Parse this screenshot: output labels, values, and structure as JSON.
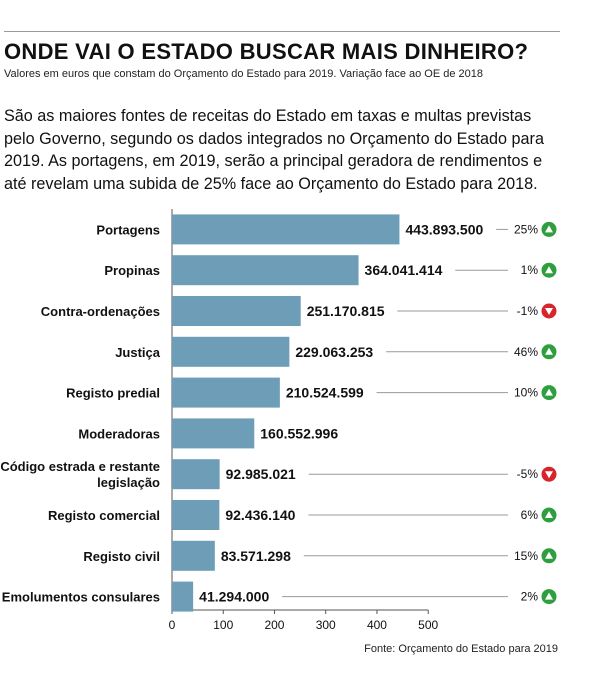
{
  "header": {
    "title": "ONDE VAI O ESTADO BUSCAR MAIS DINHEIRO?",
    "subtitle": "Valores em euros que constam do Orçamento do Estado para 2019. Variação face ao OE de 2018"
  },
  "intro": "São as maiores fontes de receitas do Estado em taxas e multas previstas pelo Governo, segundo os dados integrados no Orçamento do  Estado para 2019. As portagens, em 2019, serão a principal geradora de rendimentos e até revelam uma subida de 25% face ao Orçamento do Estado para 2018.",
  "source": "Fonte: Orçamento do Estado para 2019",
  "colors": {
    "bar": "#6e9eb7",
    "up": "#2e9e3e",
    "down": "#d6262b",
    "axis": "#555555",
    "leader": "#9a9a9a"
  },
  "chart_data": {
    "type": "bar",
    "orientation": "horizontal",
    "categories": [
      "Portagens",
      "Propinas",
      "Contra-ordenações",
      "Justiça",
      "Registo predial",
      "Moderadoras",
      "Código estrada e restante legislação",
      "Registo comercial",
      "Registo civil",
      "Emolumentos consulares"
    ],
    "values": [
      443893500,
      364041414,
      251170815,
      229063253,
      210524599,
      160552996,
      92985021,
      92436140,
      83571298,
      41294000
    ],
    "value_labels": [
      "443.893.500",
      "364.041.414",
      "251.170.815",
      "229.063.253",
      "210.524.599",
      "160.552.996",
      "92.985.021",
      "92.436.140",
      "83.571.298",
      "41.294.000"
    ],
    "variation": [
      {
        "label": "25%",
        "direction": "up"
      },
      {
        "label": "1%",
        "direction": "up"
      },
      {
        "label": "-1%",
        "direction": "down"
      },
      {
        "label": "46%",
        "direction": "up"
      },
      {
        "label": "10%",
        "direction": "up"
      },
      null,
      {
        "label": "-5%",
        "direction": "down"
      },
      {
        "label": "6%",
        "direction": "up"
      },
      {
        "label": "15%",
        "direction": "up"
      },
      {
        "label": "2%",
        "direction": "up"
      }
    ],
    "xticks": [
      0,
      100,
      200,
      300,
      400,
      500
    ],
    "xlim": [
      0,
      500
    ],
    "x_unit_scale": 1000000,
    "grid": false,
    "legend": "none"
  }
}
